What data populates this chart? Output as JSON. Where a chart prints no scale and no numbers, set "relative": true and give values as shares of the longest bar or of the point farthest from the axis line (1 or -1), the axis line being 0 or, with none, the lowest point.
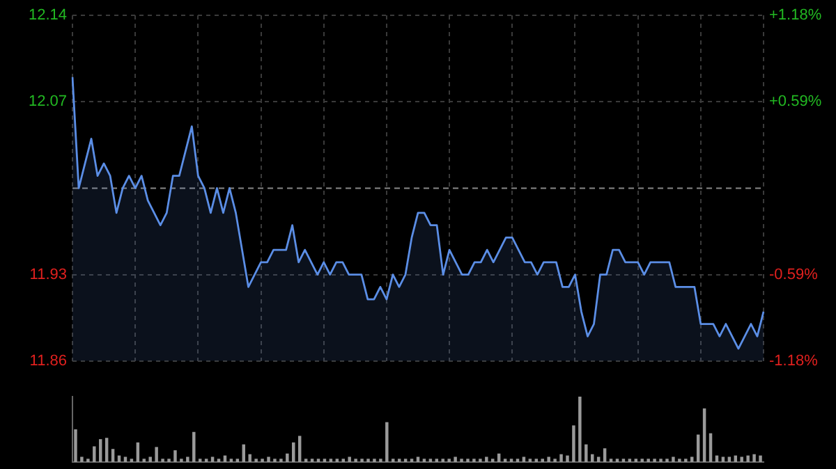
{
  "chart_data": [
    {
      "type": "area",
      "categories": [
        null,
        null,
        null,
        null,
        null,
        null,
        null,
        null,
        null,
        null,
        null,
        null,
        null,
        null,
        null,
        null,
        null,
        null,
        null,
        null,
        null,
        null,
        null,
        null,
        null,
        null,
        null,
        null,
        null,
        null,
        null,
        null,
        null,
        null,
        null,
        null,
        null,
        null,
        null,
        null,
        null,
        null,
        null,
        null,
        null,
        null,
        null,
        null,
        null,
        null,
        null,
        null,
        null,
        null,
        null,
        null,
        null,
        null,
        null,
        null,
        null,
        null,
        null,
        null,
        null,
        null,
        null,
        null,
        null,
        null,
        null,
        null,
        null,
        null,
        null,
        null,
        null,
        null,
        null,
        null,
        null,
        null,
        null,
        null,
        null,
        null,
        null,
        null,
        null,
        null,
        null,
        null,
        null,
        null,
        null,
        null,
        null,
        null,
        null,
        null,
        null,
        null,
        null,
        null,
        null,
        null,
        null,
        null,
        null,
        null,
        null
      ],
      "series": [
        {
          "color": "#5b8ee6",
          "values": [
            12.09,
            12.0,
            12.02,
            12.04,
            12.01,
            12.02,
            12.01,
            11.98,
            12.0,
            12.01,
            12.0,
            12.01,
            11.99,
            11.98,
            11.97,
            11.98,
            12.01,
            12.01,
            12.03,
            12.05,
            12.01,
            12.0,
            11.98,
            12.0,
            11.98,
            12.0,
            11.98,
            11.95,
            11.92,
            11.93,
            11.94,
            11.94,
            11.95,
            11.95,
            11.95,
            11.97,
            11.94,
            11.95,
            11.94,
            11.93,
            11.94,
            11.93,
            11.94,
            11.94,
            11.93,
            11.93,
            11.93,
            11.91,
            11.91,
            11.92,
            11.91,
            11.93,
            11.92,
            11.93,
            11.96,
            11.98,
            11.98,
            11.97,
            11.97,
            11.93,
            11.95,
            11.94,
            11.93,
            11.93,
            11.94,
            11.94,
            11.95,
            11.94,
            11.95,
            11.96,
            11.96,
            11.95,
            11.94,
            11.94,
            11.93,
            11.94,
            11.94,
            11.94,
            11.92,
            11.92,
            11.93,
            11.9,
            11.88,
            11.89,
            11.93,
            11.93,
            11.95,
            11.95,
            11.94,
            11.94,
            11.94,
            11.93,
            11.94,
            11.94,
            11.94,
            11.94,
            11.92,
            11.92,
            11.92,
            11.92,
            11.89,
            11.89,
            11.89,
            11.88,
            11.89,
            11.88,
            11.87,
            11.88,
            11.89,
            11.88,
            11.9
          ]
        }
      ],
      "ylim": [
        11.86,
        12.14
      ],
      "yticks": [
        11.86,
        11.93,
        12.07,
        12.14
      ],
      "y2lim": [
        -1.18,
        1.18
      ],
      "y2ticks": [
        {
          "value": -1.18,
          "label": "-1.18%"
        },
        {
          "value": -0.59,
          "label": "-0.59%"
        },
        {
          "value": 0.59,
          "label": "+0.59%"
        },
        {
          "value": 1.18,
          "label": "+1.18%"
        }
      ],
      "ref_lines": [
        {
          "axis": "y",
          "value": 12.0,
          "color": "#888888",
          "line_style": "dashed"
        }
      ],
      "grid": true,
      "tick_labels": "y",
      "marker": "none",
      "line_style": "solid"
    },
    {
      "type": "bar",
      "relative": true,
      "color": "#9a9a9a",
      "categories": [
        null,
        null,
        null,
        null,
        null,
        null,
        null,
        null,
        null,
        null,
        null,
        null,
        null,
        null,
        null,
        null,
        null,
        null,
        null,
        null,
        null,
        null,
        null,
        null,
        null,
        null,
        null,
        null,
        null,
        null,
        null,
        null,
        null,
        null,
        null,
        null,
        null,
        null,
        null,
        null,
        null,
        null,
        null,
        null,
        null,
        null,
        null,
        null,
        null,
        null,
        null,
        null,
        null,
        null,
        null,
        null,
        null,
        null,
        null,
        null,
        null,
        null,
        null,
        null,
        null,
        null,
        null,
        null,
        null,
        null,
        null,
        null,
        null,
        null,
        null,
        null,
        null,
        null,
        null,
        null,
        null,
        null,
        null,
        null,
        null,
        null,
        null,
        null,
        null,
        null,
        null,
        null,
        null,
        null,
        null,
        null,
        null,
        null,
        null,
        null,
        null,
        null,
        null,
        null,
        null,
        null,
        null,
        null,
        null,
        null,
        null
      ],
      "values": [
        0.5,
        0.08,
        0.05,
        0.24,
        0.35,
        0.37,
        0.2,
        0.1,
        0.08,
        0.05,
        0.3,
        0.05,
        0.08,
        0.23,
        0.05,
        0.05,
        0.18,
        0.05,
        0.08,
        0.46,
        0.05,
        0.05,
        0.08,
        0.05,
        0.1,
        0.05,
        0.05,
        0.27,
        0.12,
        0.05,
        0.05,
        0.08,
        0.05,
        0.05,
        0.13,
        0.3,
        0.4,
        0.05,
        0.05,
        0.05,
        0.05,
        0.05,
        0.05,
        0.05,
        0.08,
        0.05,
        0.05,
        0.05,
        0.05,
        0.05,
        0.61,
        0.05,
        0.05,
        0.05,
        0.05,
        0.08,
        0.05,
        0.05,
        0.05,
        0.05,
        0.05,
        0.08,
        0.05,
        0.05,
        0.05,
        0.05,
        0.08,
        0.05,
        0.13,
        0.05,
        0.05,
        0.05,
        0.08,
        0.05,
        0.05,
        0.05,
        0.08,
        0.05,
        0.12,
        0.1,
        0.56,
        1,
        0.27,
        0.12,
        0.08,
        0.21,
        0.05,
        0.05,
        0.05,
        0.05,
        0.05,
        0.05,
        0.05,
        0.05,
        0.05,
        0.05,
        0.08,
        0.05,
        0.05,
        0.08,
        0.42,
        0.82,
        0.44,
        0.1,
        0.08,
        0.08,
        0.1,
        0.08,
        0.1,
        0.12,
        0.1
      ],
      "tick_labels": false
    }
  ]
}
